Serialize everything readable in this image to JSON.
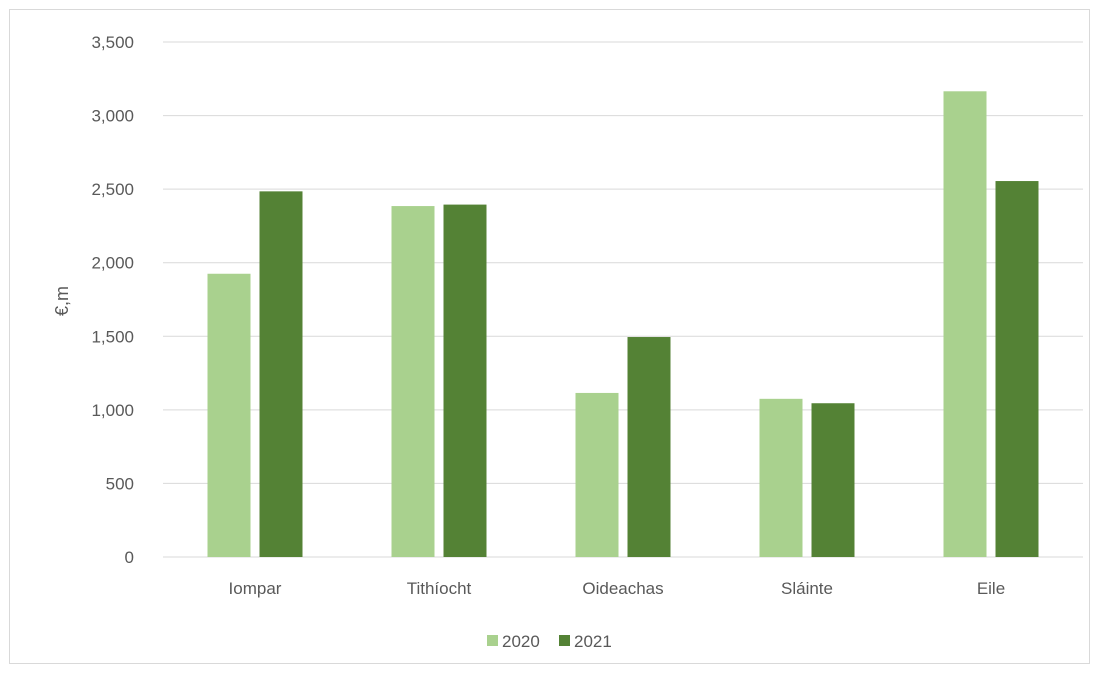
{
  "chart_data": {
    "type": "bar",
    "title": "",
    "xlabel": "",
    "ylabel": "€,m",
    "ylim": [
      0,
      3500
    ],
    "yticks": [
      0,
      500,
      1000,
      1500,
      2000,
      2500,
      3000,
      3500
    ],
    "ytick_labels": [
      "0",
      "500",
      "1,000",
      "1,500",
      "2,000",
      "2,500",
      "3,000",
      "3,500"
    ],
    "categories": [
      "Iompar",
      "Tithíocht",
      "Oideachas",
      "Sláinte",
      "Eile"
    ],
    "series": [
      {
        "name": "2020",
        "color": "#a9d18e",
        "values": [
          1925,
          2385,
          1115,
          1075,
          3165
        ]
      },
      {
        "name": "2021",
        "color": "#548235",
        "values": [
          2485,
          2395,
          1495,
          1045,
          2555
        ]
      }
    ],
    "grid": true,
    "legend": "bottom"
  }
}
